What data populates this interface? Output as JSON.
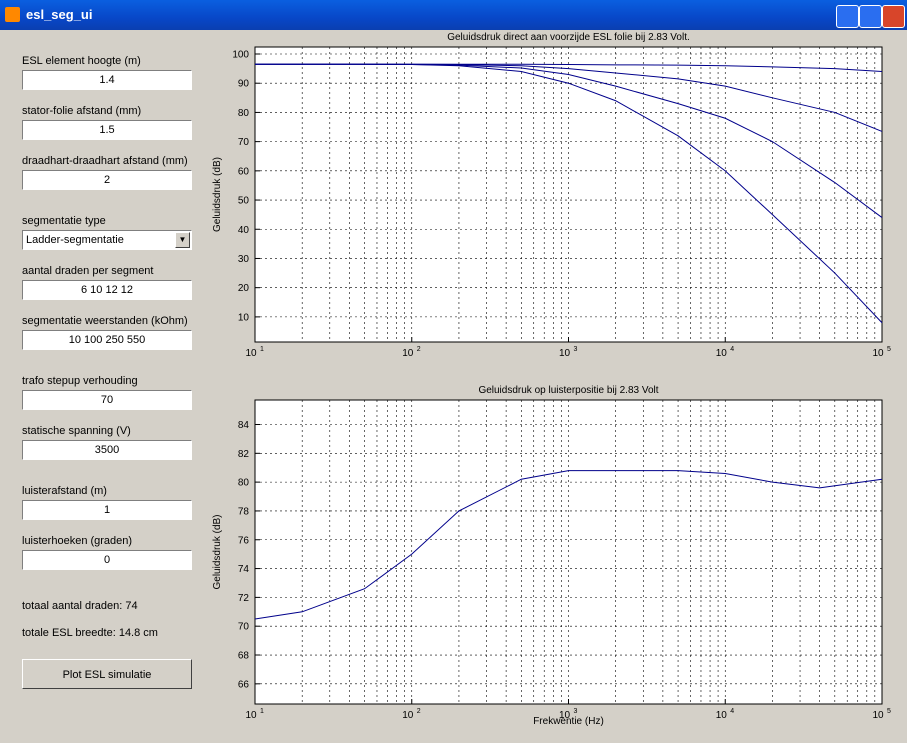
{
  "window": {
    "title": "esl_seg_ui"
  },
  "form": {
    "fields": [
      {
        "label": "ESL element hoogte (m)",
        "value": "1.4"
      },
      {
        "label": "stator-folie afstand (mm)",
        "value": "1.5"
      },
      {
        "label": "draadhart-draadhart afstand (mm)",
        "value": "2"
      },
      {
        "label": "segmentatie type",
        "value": "Ladder-segmentatie",
        "kind": "dropdown"
      },
      {
        "label": "aantal draden per segment",
        "value": "6 10 12 12"
      },
      {
        "label": "segmentatie weerstanden (kOhm)",
        "value": "10 100 250 550"
      },
      {
        "label": "trafo stepup verhouding",
        "value": "70"
      },
      {
        "label": "statische spanning (V)",
        "value": "3500"
      },
      {
        "label": "luisterafstand (m)",
        "value": "1"
      },
      {
        "label": "luisterhoeken (graden)",
        "value": "0"
      }
    ],
    "info": [
      "totaal aantal draden: 74",
      "totale ESL breedte: 14.8 cm"
    ],
    "button": "Plot ESL simulatie"
  },
  "chart_data": [
    {
      "type": "line",
      "title": "Geluidsdruk direct aan voorzijde ESL folie bij 2.83 Volt.",
      "y_label": "Geluidsdruk (dB)",
      "log_x": true,
      "grid": true,
      "x": [
        10,
        20,
        50,
        100,
        200,
        500,
        1000,
        2000,
        5000,
        10000,
        20000,
        50000,
        100000
      ],
      "series": [
        {
          "color": "#00008b",
          "values": [
            96.5,
            96.5,
            96.5,
            96.5,
            96.5,
            96.5,
            96.4,
            96.3,
            96.2,
            96.0,
            95.6,
            95,
            94
          ]
        },
        {
          "color": "#00008b",
          "values": [
            96.5,
            96.5,
            96.5,
            96.5,
            96.4,
            96.0,
            95.0,
            93.5,
            91.5,
            89,
            85,
            80,
            73.5
          ]
        },
        {
          "color": "#00008b",
          "values": [
            96.5,
            96.5,
            96.5,
            96.4,
            96.2,
            95.2,
            93,
            89,
            83,
            78,
            70,
            56,
            44
          ]
        },
        {
          "color": "#00008b",
          "values": [
            96.5,
            96.5,
            96.5,
            96.4,
            96.0,
            94.0,
            90,
            84,
            72,
            60,
            45,
            25,
            8
          ]
        }
      ],
      "xlim": [
        10,
        100000
      ],
      "ylim": [
        1.4,
        102.4
      ],
      "xticks": [
        {
          "value": 10,
          "label": "10",
          "exponent": "1"
        },
        {
          "value": 100,
          "label": "10",
          "exponent": "2"
        },
        {
          "value": 1000,
          "label": "10",
          "exponent": "3"
        },
        {
          "value": 10000,
          "label": "10",
          "exponent": "4"
        },
        {
          "value": 100000,
          "label": "10",
          "exponent": "5"
        }
      ],
      "yticks": [
        10,
        20,
        30,
        40,
        50,
        60,
        70,
        80,
        90,
        100
      ]
    },
    {
      "type": "line",
      "title": "Geluidsdruk op luisterpositie bij 2.83 Volt",
      "x_label": "Frekwentie (Hz)",
      "y_label": "Geluidsdruk (dB)",
      "log_x": true,
      "grid": true,
      "x": [
        10,
        20,
        50,
        100,
        200,
        500,
        1000,
        2000,
        5000,
        10000,
        20000,
        40000,
        100000
      ],
      "series": [
        {
          "color": "#00008b",
          "values": [
            70.5,
            71.0,
            72.6,
            75.0,
            78.0,
            80.2,
            80.8,
            80.8,
            80.8,
            80.6,
            80.0,
            79.6,
            80.2
          ]
        }
      ],
      "xlim": [
        10,
        100000
      ],
      "ylim": [
        64.6,
        85.7
      ],
      "xticks": [
        {
          "value": 10,
          "label": "10",
          "exponent": "1"
        },
        {
          "value": 100,
          "label": "10",
          "exponent": "2"
        },
        {
          "value": 1000,
          "label": "10",
          "exponent": "3"
        },
        {
          "value": 10000,
          "label": "10",
          "exponent": "4"
        },
        {
          "value": 100000,
          "label": "10",
          "exponent": "5"
        }
      ],
      "yticks": [
        66,
        68,
        70,
        72,
        74,
        76,
        78,
        80,
        82,
        84
      ]
    }
  ]
}
